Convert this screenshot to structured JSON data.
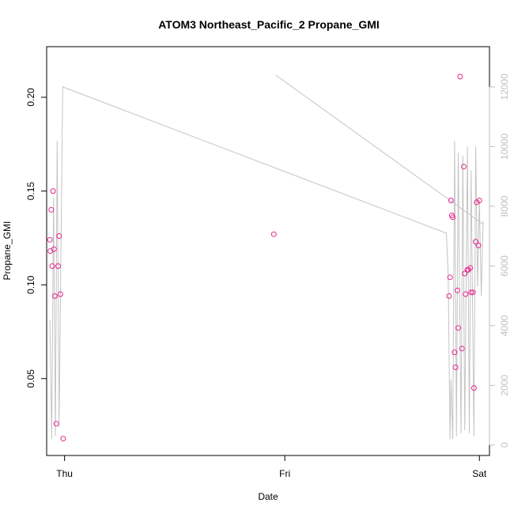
{
  "chart_data": {
    "type": "scatter",
    "title": "ATOM3 Northeast_Pacific_2 Propane_GMI",
    "xlabel": "Date",
    "ylabel": "Propane_GMI",
    "x_ticks": [
      "Thu",
      "Fri",
      "Sat"
    ],
    "y_ticks": [
      "0.05",
      "0.10",
      "0.15",
      "0.20"
    ],
    "y2_ticks": [
      "0",
      "2000",
      "4000",
      "6000",
      "8000",
      "10000",
      "12000"
    ],
    "xlim_hours": [
      -1.95,
      46.3
    ],
    "ylim": [
      0.009,
      0.227
    ],
    "y2lim": [
      -350,
      13350
    ],
    "grid": false,
    "colors": {
      "points": "#e8248f",
      "altitude": "#c4c4c4",
      "axis": "#000000",
      "right_axis": "#bfbfbf"
    },
    "series": [
      {
        "axis": "left",
        "style": "points",
        "x": [
          -1.6,
          -1.55,
          -1.45,
          -1.35,
          -1.25,
          -1.15,
          -1.05,
          -0.9,
          -0.7,
          -0.6,
          -0.45,
          -0.15,
          22.8,
          41.9,
          42.0,
          42.1,
          42.2,
          42.3,
          42.5,
          42.6,
          42.8,
          42.9,
          43.1,
          43.3,
          43.5,
          43.6,
          43.7,
          43.9,
          44.0,
          44.2,
          44.3,
          44.5,
          44.6,
          44.8,
          44.9,
          45.1,
          45.2,
          45.4,
          45.6
        ],
        "y": [
          0.124,
          0.118,
          0.14,
          0.11,
          0.15,
          0.119,
          0.094,
          0.026,
          0.11,
          0.126,
          0.095,
          0.018,
          0.127,
          0.094,
          0.104,
          0.145,
          0.137,
          0.136,
          0.064,
          0.056,
          0.097,
          0.077,
          0.211,
          0.066,
          0.163,
          0.106,
          0.095,
          0.108,
          0.108,
          0.109,
          0.096,
          0.096,
          0.045,
          0.123,
          0.144,
          0.121,
          0.145,
          0.0,
          0.0
        ]
      },
      {
        "axis": "right",
        "style": "line",
        "x": [
          -1.6,
          -1.4,
          -1.2,
          -1.0,
          -0.8,
          -0.6,
          -0.2,
          41.6,
          41.8,
          42.0,
          42.1,
          42.3,
          42.5,
          42.7,
          42.9,
          43.2,
          43.4,
          43.6,
          43.9,
          44.1,
          44.3,
          44.6,
          44.8,
          45.0,
          45.2,
          45.4,
          45.6,
          45.6,
          23.0
        ],
        "y": [
          4200,
          200,
          8300,
          300,
          10200,
          600,
          12000,
          7100,
          5700,
          200,
          2200,
          200,
          10200,
          300,
          9800,
          400,
          9700,
          500,
          10000,
          400,
          9200,
          300,
          10000,
          5300,
          8200,
          5000,
          7500,
          7400,
          12400
        ]
      }
    ]
  }
}
